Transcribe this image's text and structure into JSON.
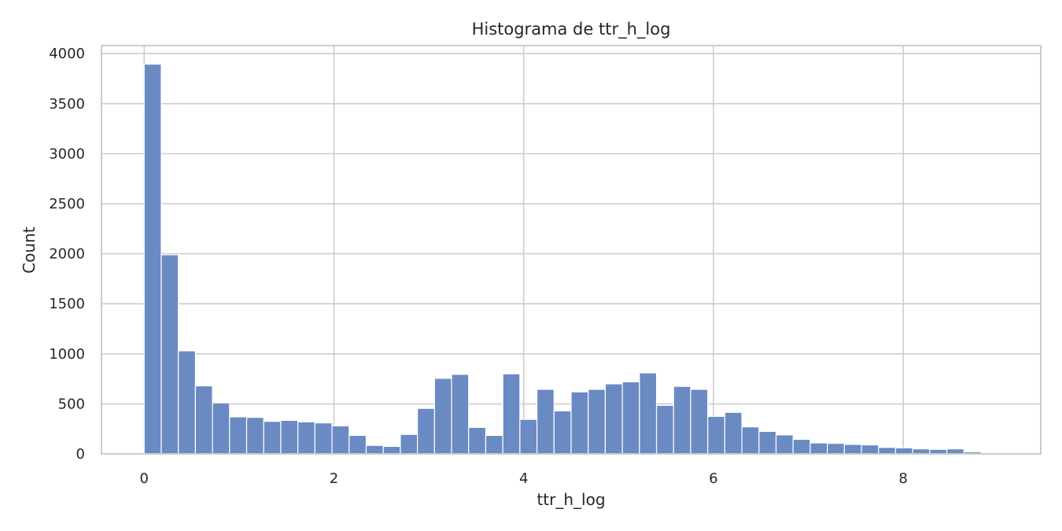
{
  "chart_data": {
    "type": "bar",
    "title": "Histograma de ttr_h_log",
    "xlabel": "ttr_h_log",
    "ylabel": "Count",
    "xlim": [
      -0.45,
      9.45
    ],
    "ylim": [
      0,
      4080
    ],
    "xticks": [
      0,
      2,
      4,
      6,
      8
    ],
    "yticks": [
      0,
      500,
      1000,
      1500,
      2000,
      2500,
      3000,
      3500,
      4000
    ],
    "bin_start": 0,
    "bin_width": 0.18,
    "values": [
      3895,
      1990,
      1030,
      680,
      510,
      370,
      365,
      325,
      335,
      320,
      310,
      280,
      185,
      85,
      75,
      195,
      455,
      755,
      795,
      265,
      185,
      800,
      345,
      645,
      430,
      620,
      645,
      700,
      720,
      810,
      485,
      675,
      645,
      375,
      415,
      270,
      225,
      190,
      145,
      110,
      105,
      95,
      90,
      65,
      60,
      50,
      45,
      50,
      20,
      5,
      5
    ],
    "grid": true,
    "legend": "none",
    "colors": {
      "bar": "#6a8ac3",
      "bar_edge": "#ffffff",
      "grid": "#cccccc",
      "spine": "#cccccc",
      "text": "#262626"
    }
  }
}
